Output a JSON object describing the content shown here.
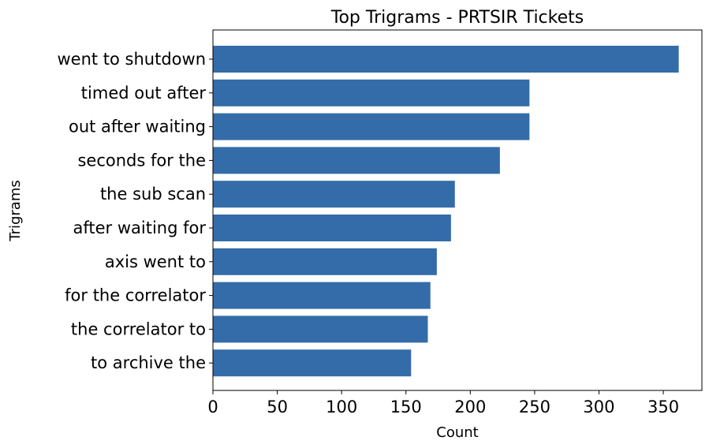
{
  "chart_data": {
    "type": "bar",
    "orientation": "horizontal",
    "title": "Top Trigrams - PRTSIR Tickets",
    "xlabel": "Count",
    "ylabel": "Trigrams",
    "categories": [
      "went to shutdown",
      "timed out after",
      "out after waiting",
      "seconds for the",
      "the sub scan",
      "after waiting for",
      "axis went to",
      "for the correlator",
      "the correlator to",
      "to archive the"
    ],
    "values": [
      362,
      246,
      246,
      223,
      188,
      185,
      174,
      169,
      167,
      154
    ],
    "xlim": [
      0,
      380
    ],
    "xticks": [
      0,
      50,
      100,
      150,
      200,
      250,
      300,
      350
    ],
    "bar_color": "#336ca8",
    "grid": false,
    "legend": "none"
  }
}
